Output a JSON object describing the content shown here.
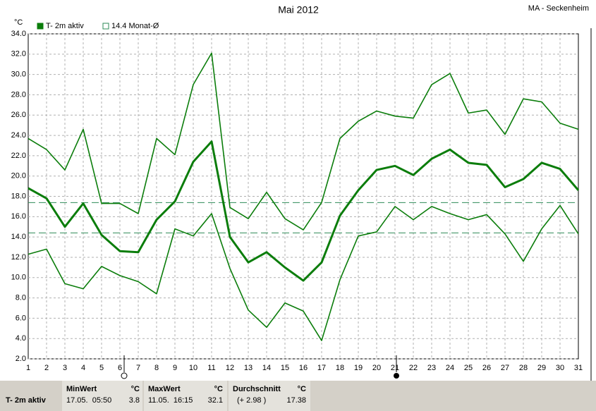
{
  "chart_data": {
    "type": "line",
    "title": "Mai 2012",
    "station": "MA - Seckenheim",
    "y_unit": "°C",
    "categories": [
      "1",
      "2",
      "3",
      "4",
      "5",
      "6",
      "7",
      "8",
      "9",
      "10",
      "11",
      "12",
      "13",
      "14",
      "15",
      "16",
      "17",
      "18",
      "19",
      "20",
      "21",
      "22",
      "23",
      "24",
      "25",
      "26",
      "27",
      "28",
      "29",
      "30",
      "31"
    ],
    "series": [
      {
        "name": "T- 2m aktiv",
        "color": "#0b7d0b",
        "values": [
          18.8,
          17.8,
          15.0,
          17.3,
          14.2,
          12.6,
          12.5,
          15.7,
          17.5,
          21.4,
          23.4,
          14.0,
          11.5,
          12.5,
          11.0,
          9.7,
          11.5,
          16.1,
          18.6,
          20.6,
          21.0,
          20.1,
          21.7,
          22.6,
          21.3,
          21.1,
          18.9,
          19.7,
          21.3,
          20.7,
          18.6
        ]
      },
      {
        "color": "#0b7d0b",
        "values": [
          23.7,
          22.6,
          20.6,
          24.6,
          17.3,
          17.3,
          16.3,
          23.7,
          22.1,
          29.0,
          32.1,
          16.9,
          15.8,
          18.4,
          15.8,
          14.7,
          17.4,
          23.7,
          25.4,
          26.4,
          25.9,
          25.7,
          29.0,
          30.1,
          26.2,
          26.5,
          24.1,
          27.6,
          27.3,
          25.2,
          24.6
        ]
      },
      {
        "color": "#0b7d0b",
        "values": [
          12.3,
          12.8,
          9.4,
          8.9,
          11.1,
          10.2,
          9.6,
          8.4,
          14.8,
          14.1,
          16.3,
          10.9,
          6.8,
          5.1,
          7.5,
          6.7,
          3.8,
          9.8,
          14.1,
          14.5,
          17.0,
          15.7,
          17.0,
          16.3,
          15.7,
          16.2,
          14.3,
          11.6,
          14.8,
          17.1,
          14.3
        ]
      }
    ],
    "monthly_mean": {
      "label": "14.4 Monat-Ø",
      "value": 14.4,
      "color": "#2e8b57"
    },
    "ylim": [
      2,
      34
    ],
    "yticks": [
      {
        "value": 2,
        "label": "2.0"
      },
      {
        "value": 4,
        "label": "4.0"
      },
      {
        "value": 6,
        "label": "6.0"
      },
      {
        "value": 8,
        "label": "8.0"
      },
      {
        "value": 10,
        "label": "10.0"
      },
      {
        "value": 12,
        "label": "12.0"
      },
      {
        "value": 14,
        "label": "14.0"
      },
      {
        "value": 16,
        "label": "16.0"
      },
      {
        "value": 18,
        "label": "18.0"
      },
      {
        "value": 20,
        "label": "20.0"
      },
      {
        "value": 22,
        "label": "22.0"
      },
      {
        "value": 24,
        "label": "24.0"
      },
      {
        "value": 26,
        "label": "26.0"
      },
      {
        "value": 28,
        "label": "28.0"
      },
      {
        "value": 30,
        "label": "30.0"
      },
      {
        "value": 32,
        "label": "32.0"
      },
      {
        "value": 34,
        "label": "34.0"
      }
    ],
    "grid": true
  },
  "stats": {
    "row_label": "T- 2m aktiv",
    "min": {
      "header": "MinWert",
      "unit": "°C",
      "time": "17.05.  05:50",
      "value": 3.8
    },
    "max": {
      "header": "MaxWert",
      "unit": "°C",
      "time": "11.05.  16:15",
      "value": 32.1
    },
    "average": {
      "header": "Durchschnitt",
      "unit": "°C",
      "deviation": "(+ 2.98 )",
      "value": 17.38
    }
  }
}
